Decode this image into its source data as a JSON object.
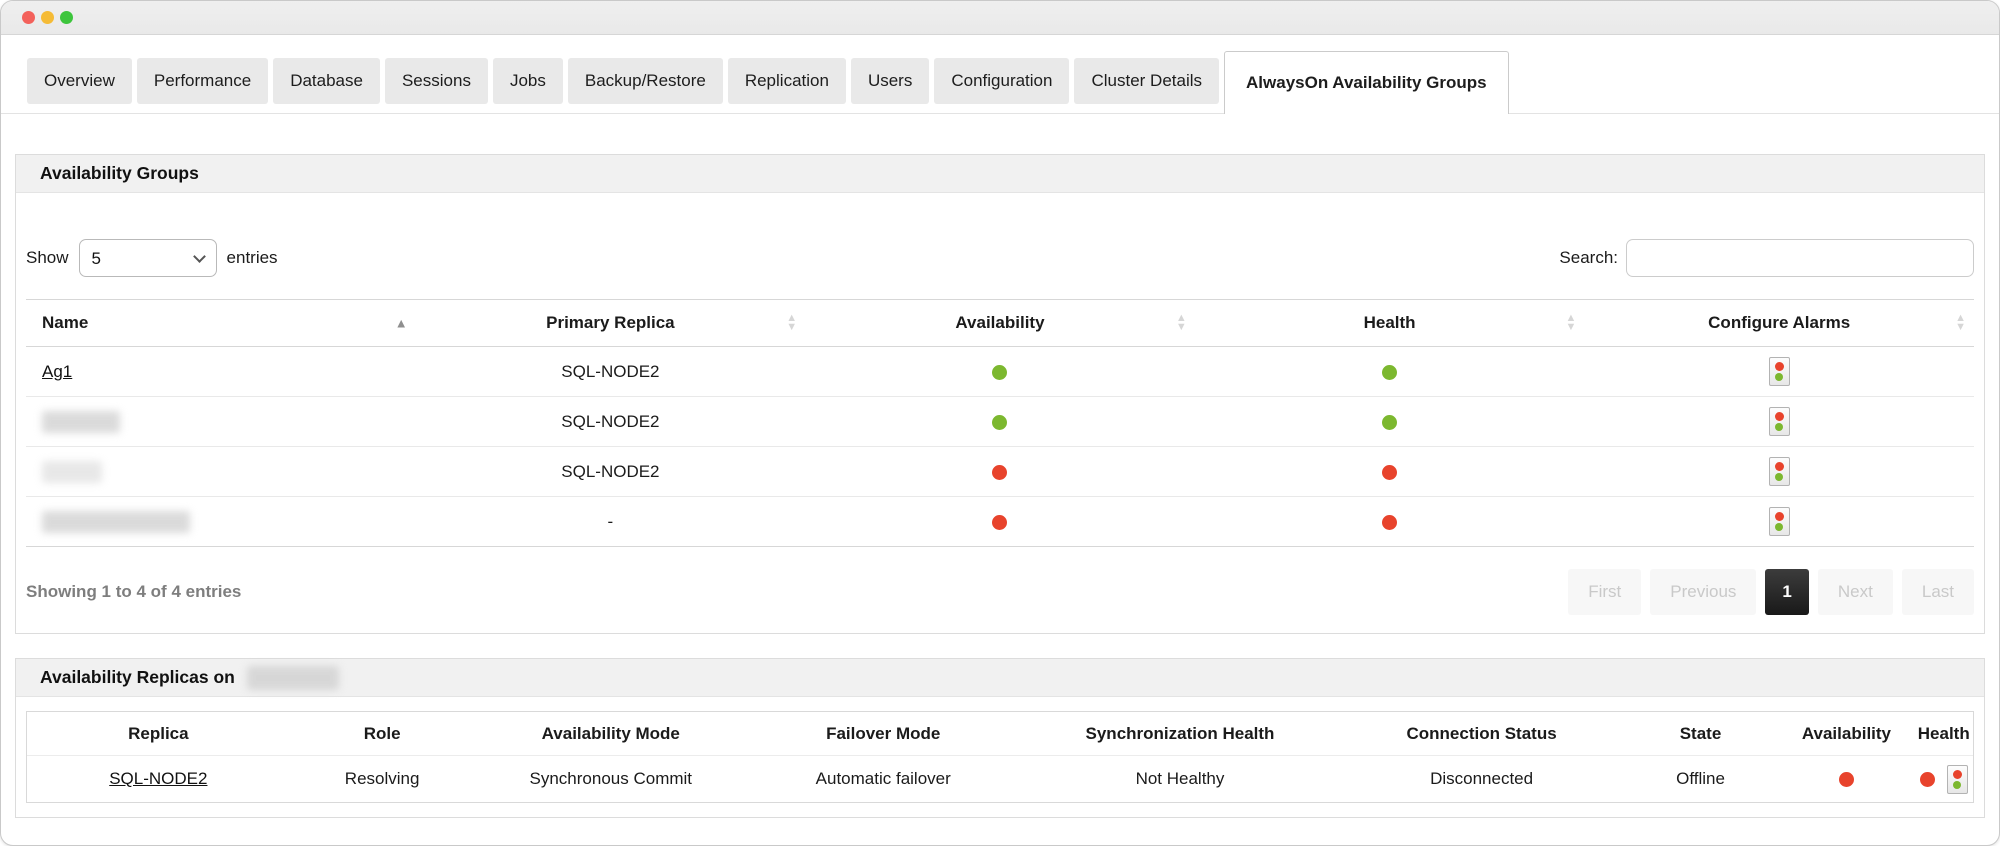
{
  "window": {
    "traffic_lights": [
      "close",
      "minimize",
      "zoom"
    ]
  },
  "tabs": {
    "items": [
      "Overview",
      "Performance",
      "Database",
      "Sessions",
      "Jobs",
      "Backup/Restore",
      "Replication",
      "Users",
      "Configuration",
      "Cluster Details",
      "AlwaysOn Availability Groups"
    ],
    "active_index": 10
  },
  "colors": {
    "status_green": "#7cb82f",
    "status_red": "#e8432c"
  },
  "groups": {
    "title": "Availability Groups",
    "show_label": "Show",
    "page_size_value": "5",
    "entries_label": "entries",
    "search_label": "Search:",
    "search_value": "",
    "columns": [
      "Name",
      "Primary Replica",
      "Availability",
      "Health",
      "Configure Alarms"
    ],
    "sorted_column": "Name",
    "sort_direction": "asc",
    "rows": [
      {
        "name": "Ag1",
        "redacted": false,
        "primary_replica": "SQL-NODE2",
        "availability_color": "#7cb82f",
        "health_color": "#7cb82f"
      },
      {
        "name": "",
        "redacted": true,
        "primary_replica": "SQL-NODE2",
        "availability_color": "#7cb82f",
        "health_color": "#7cb82f"
      },
      {
        "name": "",
        "redacted": true,
        "primary_replica": "SQL-NODE2",
        "availability_color": "#e8432c",
        "health_color": "#e8432c"
      },
      {
        "name": "",
        "redacted": true,
        "primary_replica": "-",
        "availability_color": "#e8432c",
        "health_color": "#e8432c"
      }
    ],
    "summary": "Showing 1 to 4 of 4 entries",
    "pagination": {
      "first": "First",
      "previous": "Previous",
      "current": "1",
      "next": "Next",
      "last": "Last"
    }
  },
  "replicas": {
    "title_prefix": "Availability Replicas on",
    "title_target_redacted": true,
    "columns": [
      "Replica",
      "Role",
      "Availability Mode",
      "Failover Mode",
      "Synchronization Health",
      "Connection Status",
      "State",
      "Availability",
      "Health"
    ],
    "row": {
      "replica": "SQL-NODE2",
      "role": "Resolving",
      "availability_mode": "Synchronous Commit",
      "failover_mode": "Automatic failover",
      "synchronization_health": "Not Healthy",
      "connection_status": "Disconnected",
      "state": "Offline",
      "availability_color": "#e8432c",
      "health_color": "#e8432c"
    }
  }
}
